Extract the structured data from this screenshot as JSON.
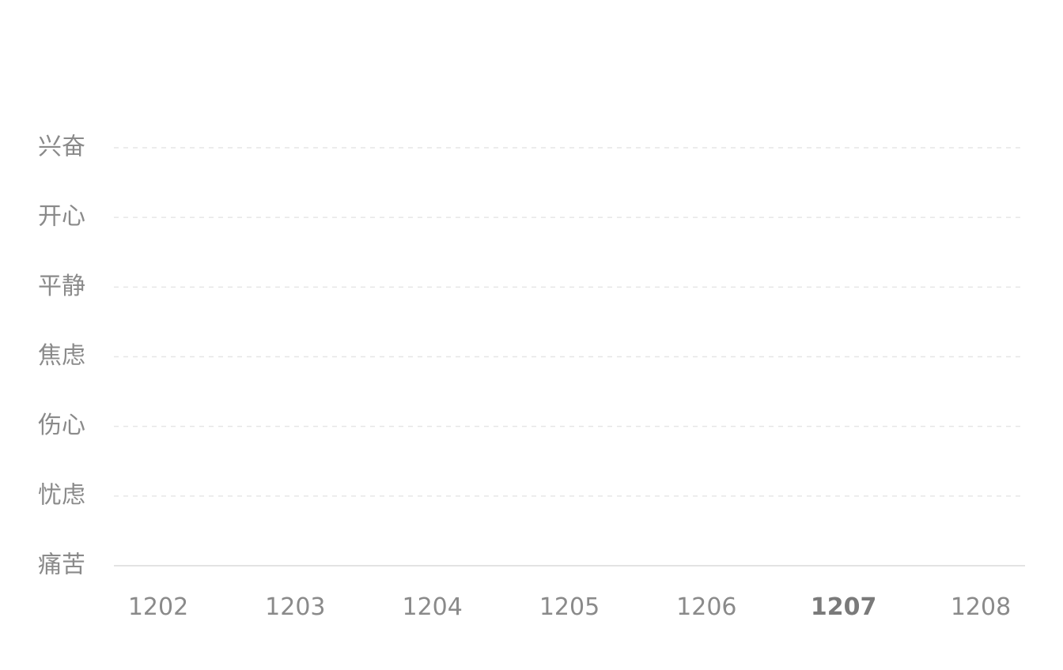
{
  "chart_data": {
    "type": "line",
    "title": "",
    "xlabel": "",
    "ylabel": "",
    "categories": [
      "1202",
      "1203",
      "1204",
      "1205",
      "1206",
      "1207",
      "1208"
    ],
    "y_categories": [
      "痛苦",
      "忧虑",
      "伤心",
      "焦虑",
      "平静",
      "开心",
      "兴奋"
    ],
    "selected_category": "1207",
    "series": [],
    "grid": true,
    "legend": "none",
    "colors": {
      "label": "#8a8a8a",
      "grid": "#e6e6e6",
      "axis": "#e3e3e3"
    }
  }
}
